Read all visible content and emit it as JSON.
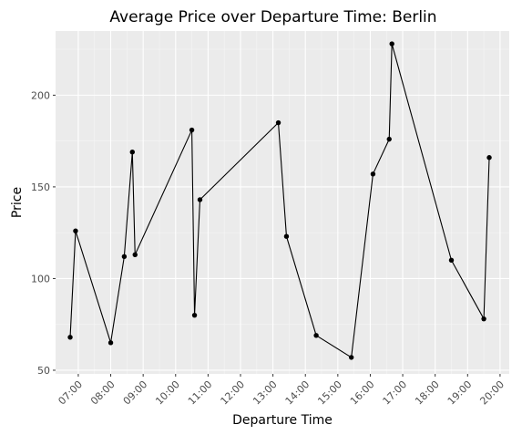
{
  "chart_data": {
    "type": "line",
    "title": "Average Price over Departure Time: Berlin",
    "xlabel": "Departure Time",
    "ylabel": "Price",
    "x_ticks": [
      "07:00",
      "08:00",
      "09:00",
      "10:00",
      "11:00",
      "12:00",
      "13:00",
      "14:00",
      "15:00",
      "16:00",
      "17:00",
      "18:00",
      "19:00",
      "20:00"
    ],
    "y_ticks": [
      50,
      100,
      150,
      200
    ],
    "xlim": [
      "06:18",
      "20:17"
    ],
    "ylim": [
      48,
      235
    ],
    "grid": true,
    "legend": "none",
    "series": [
      {
        "x": [
          "06:45",
          "06:55",
          "08:00",
          "08:25",
          "08:40",
          "08:45",
          "10:30",
          "10:35",
          "10:45",
          "13:10",
          "13:25",
          "14:20",
          "15:25",
          "16:05",
          "16:35",
          "16:40",
          "18:30",
          "19:30",
          "19:40"
        ],
        "values": [
          68,
          126,
          65,
          112,
          169,
          113,
          181,
          80,
          143,
          185,
          123,
          69,
          57,
          157,
          176,
          228,
          110,
          78,
          166
        ]
      }
    ],
    "colors": {
      "panel": "#ebebeb",
      "grid_major": "#ffffff",
      "grid_minor": "#f5f5f5",
      "line": "#000000",
      "point": "#000000",
      "tick": "#333333"
    }
  }
}
